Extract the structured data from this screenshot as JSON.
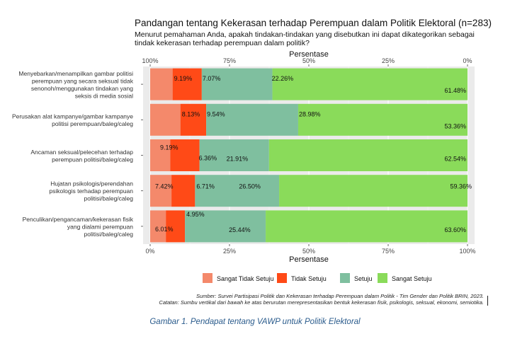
{
  "chart_data": {
    "type": "bar",
    "orientation": "horizontal-stacked-100",
    "title": "Pandangan tentang Kekerasan terhadap Perempuan dalam Politik Elektoral (n=283)",
    "subtitle": "Menurut pemahaman Anda, apakah tindakan-tindakan yang disebutkan ini dapat dikategorikan sebagai tindak kekerasan terhadap perempuan dalam politik?",
    "xlabel": "Persentase",
    "xlabel_top": "Persentase",
    "ticks_bottom": [
      "0%",
      "25%",
      "50%",
      "75%",
      "100%"
    ],
    "ticks_top": [
      "100%",
      "75%",
      "50%",
      "25%",
      "0%"
    ],
    "xlim": [
      0,
      100
    ],
    "categories": [
      "Menyebarkan/menampilkan gambar politisi perempuan yang secara seksual tidak senonoh/menggunakan tindakan yang seksis di media sosial",
      "Perusakan alat kampanye/gambar kampanye politisi perempuan/baleg/caleg",
      "Ancaman seksual/pelecehan terhadap perempuan politisi/baleg/caleg",
      "Hujatan psikologis/perendahan psikologis terhadap perempuan politisi/baleg/caleg",
      "Penculikan/pengancaman/kekerasan fisik yang dialami perempuan politisi/baleg/caleg"
    ],
    "category_lines": [
      [
        "Menyebarkan/menampilkan gambar politisi",
        "perempuan yang secara seksual tidak",
        "senonoh/menggunakan tindakan yang",
        "seksis di media sosial"
      ],
      [
        "Perusakan alat kampanye/gambar kampanye",
        "politisi perempuan/baleg/caleg"
      ],
      [
        "Ancaman seksual/pelecehan terhadap",
        "perempuan politisi/baleg/caleg"
      ],
      [
        "Hujatan psikologis/perendahan",
        "psikologis terhadap perempuan",
        "politisi/baleg/caleg"
      ],
      [
        "Penculikan/pengancaman/kekerasan fisik",
        "yang dialami perempuan",
        "politisi/baleg/caleg"
      ]
    ],
    "series": [
      {
        "name": "Sangat Tidak Setuju",
        "color": "#F4896B",
        "values": [
          null,
          null,
          null,
          null,
          null
        ]
      },
      {
        "name": "Tidak Setuju",
        "color": "#FF4A17",
        "values": [
          9.19,
          8.13,
          9.19,
          7.42,
          6.01
        ]
      },
      {
        "name": "Setuju",
        "color": "#7FBF9F",
        "values": [
          22.26,
          28.98,
          21.91,
          26.5,
          25.44
        ]
      },
      {
        "name": "Sangat Setuju",
        "color": "#8ADB5A",
        "values": [
          61.48,
          53.36,
          62.54,
          59.36,
          63.6
        ]
      }
    ],
    "segment_labels": [
      [
        "",
        "9.19%",
        "7.07%",
        "22.26%",
        "61.48%"
      ],
      [
        "",
        "8.13%",
        "9.54%",
        "28.98%",
        "53.36%"
      ],
      [
        "9.19%",
        "",
        "6.36%",
        "21.91%",
        "62.54%"
      ],
      [
        "7.42%",
        "",
        "6.71%",
        "26.50%",
        "59.36%"
      ],
      [
        "6.01%",
        "",
        "4.95%",
        "25.44%",
        "63.60%"
      ]
    ],
    "legend": "bottom",
    "grid": true
  },
  "source_note": "Sumber: Survei Partisipasi Politik dan Kekerasan terhadap Perempuan dalam Politik - Tim Gender dan Politik BRIN, 2023.",
  "caveat_note": "Catatan: Sumbu vertikal dari bawah ke atas berurutan merepresentasikan bentuk kekerasan fisik, psikologis, seksual, ekonomi, semiotika.",
  "figure_caption": "Gambar 1. Pendapat tentang VAWP untuk Politik Elektoral"
}
